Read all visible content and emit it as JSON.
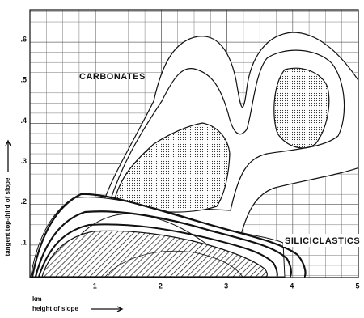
{
  "chart_data": {
    "type": "contour",
    "xlabel_unit": "km",
    "xlabel": "height of slope",
    "ylabel": "tangent top-third of slope",
    "annotations": [
      "CARBONATES",
      "SILICICLASTICS"
    ],
    "xlim": [
      0,
      5
    ],
    "ylim": [
      0.02,
      0.68
    ],
    "xticks": [
      1,
      2,
      3,
      4,
      5
    ],
    "yticks": [
      {
        "value": 0.1,
        "label": ".1"
      },
      {
        "value": 0.2,
        "label": ".2"
      },
      {
        "value": 0.3,
        "label": ".3"
      },
      {
        "value": 0.4,
        "label": ".4"
      },
      {
        "value": 0.5,
        "label": ".5"
      },
      {
        "value": 0.6,
        "label": ".6"
      }
    ],
    "grid": true
  }
}
